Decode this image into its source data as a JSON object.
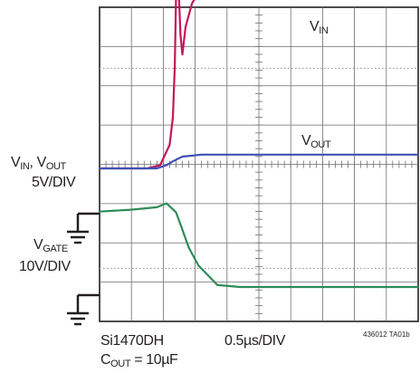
{
  "labels": {
    "ch1_name": "V",
    "ch1_sub": "IN",
    "ch1_sep": ", ",
    "ch2_name": "V",
    "ch2_sub": "OUT",
    "ch12_scale": "5V/DIV",
    "ch3_name": "V",
    "ch3_sub": "GATE",
    "ch3_scale": "10V/DIV",
    "trace_vin": "V",
    "trace_vin_sub": "IN",
    "trace_vout": "V",
    "trace_vout_sub": "OUT",
    "part": "Si1470DH",
    "cout_name": "C",
    "cout_sub": "OUT",
    "cout_value": " = 10µF",
    "timebase": "0.5µs/DIV",
    "fig_id": "436012 TA01b"
  },
  "chart_data": {
    "type": "line",
    "xlabel": "0.5µs/DIV",
    "x_unit": "µs",
    "xlim": [
      0,
      5
    ],
    "divisions": {
      "x": 10,
      "y": 8
    },
    "grid": true,
    "series": [
      {
        "name": "VIN",
        "color": "#c2185b",
        "scale": "5V/DIV",
        "x": [
          0,
          0.75,
          0.95,
          1.1,
          1.15,
          1.18,
          1.2,
          1.21,
          1.24,
          1.27,
          1.3,
          1.35,
          1.45,
          1.6,
          1.8,
          2.5,
          3.5,
          5.0
        ],
        "y": [
          0,
          0,
          0.08,
          0.6,
          1.3,
          2.6,
          4.4,
          5.2,
          4.6,
          3.4,
          2.9,
          3.6,
          4.2,
          4.6,
          4.72,
          4.72,
          4.72,
          4.74
        ]
      },
      {
        "name": "VOUT",
        "color": "#3f51b5",
        "scale": "5V/DIV",
        "x": [
          0,
          0.9,
          1.05,
          1.15,
          1.3,
          1.6,
          5.0
        ],
        "y": [
          0,
          0,
          0.08,
          0.18,
          0.3,
          0.35,
          0.35
        ]
      },
      {
        "name": "VGATE",
        "color": "#2e8b57",
        "scale": "10V/DIV",
        "x": [
          0,
          0.5,
          0.9,
          1.05,
          1.2,
          1.28,
          1.4,
          1.55,
          1.7,
          1.85,
          2.2,
          3.0,
          5.0
        ],
        "y": [
          1.92,
          1.97,
          2.03,
          2.13,
          1.9,
          1.55,
          1.0,
          0.55,
          0.3,
          0.05,
          0,
          0,
          0
        ]
      }
    ]
  }
}
